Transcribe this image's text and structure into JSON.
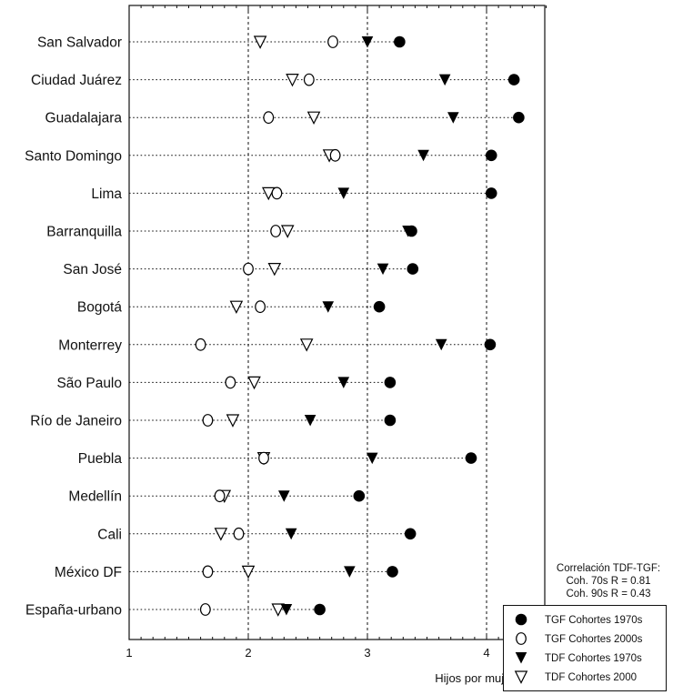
{
  "chart_data": {
    "type": "scatter",
    "orientation": "horizontal-dot-plot",
    "xlabel": "Hijos por mujer",
    "xlim": [
      1,
      4.5
    ],
    "xticks": [
      1,
      2,
      3,
      4
    ],
    "grid": "vertical dashed at 2, 3, 4",
    "categories": [
      "San Salvador",
      "Ciudad Juárez",
      "Guadalajara",
      "Santo Domingo",
      "Lima",
      "Barranquilla",
      "San José",
      "Bogotá",
      "Monterrey",
      "São Paulo",
      "Río de Janeiro",
      "Puebla",
      "Medellín",
      "Cali",
      "México DF",
      "España-urbano"
    ],
    "series": [
      {
        "name": "TGF Cohortes 1970s",
        "marker": "filled-circle",
        "values": [
          3.27,
          4.23,
          4.27,
          4.04,
          4.04,
          3.37,
          3.38,
          3.1,
          4.03,
          3.19,
          3.19,
          3.87,
          2.93,
          3.36,
          3.21,
          2.6
        ]
      },
      {
        "name": "TGF Cohortes 2000s",
        "marker": "open-circle",
        "values": [
          2.71,
          2.51,
          2.17,
          2.73,
          2.24,
          2.23,
          2.0,
          2.1,
          1.6,
          1.85,
          1.66,
          2.13,
          1.76,
          1.92,
          1.66,
          1.64
        ]
      },
      {
        "name": "TDF Cohortes 1970s",
        "marker": "filled-triangle-down",
        "values": [
          3.0,
          3.65,
          3.72,
          3.47,
          2.8,
          3.34,
          3.13,
          2.67,
          3.62,
          2.8,
          2.52,
          3.04,
          2.3,
          2.36,
          2.85,
          2.32
        ]
      },
      {
        "name": "TDF Cohortes 2000",
        "marker": "open-triangle-down",
        "values": [
          2.1,
          2.37,
          2.55,
          2.68,
          2.17,
          2.33,
          2.22,
          1.9,
          2.49,
          2.05,
          1.87,
          2.13,
          1.8,
          1.77,
          2.0,
          2.25
        ]
      }
    ],
    "legend_placement": "bottom-right",
    "annotation": {
      "title": "Correlación TDF-TGF:",
      "lines": [
        "Coh. 70s R = 0.81",
        "Coh. 90s R = 0.43"
      ]
    }
  }
}
